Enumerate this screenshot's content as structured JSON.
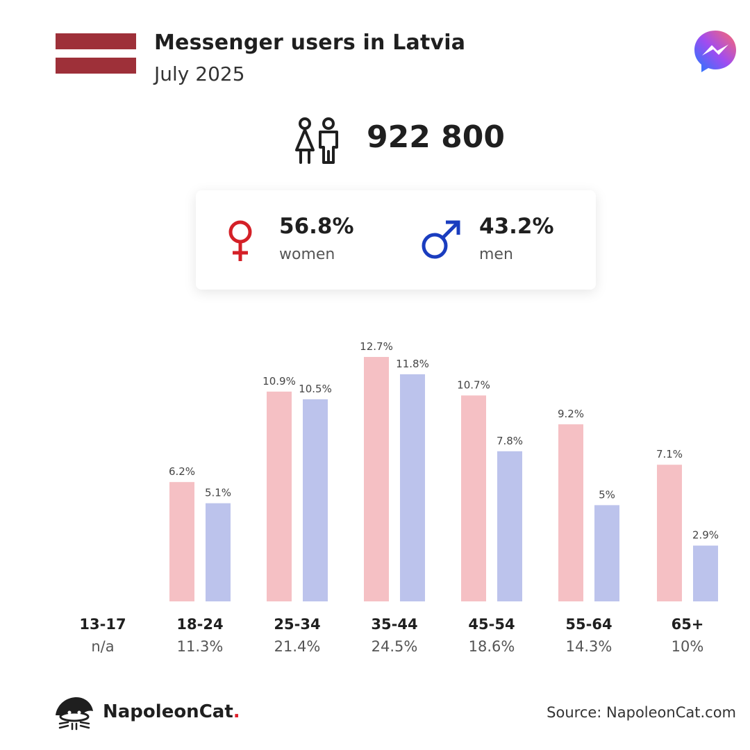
{
  "header": {
    "title": "Messenger users in Latvia",
    "subtitle": "July 2025"
  },
  "total": "922 800",
  "gender": {
    "women_pct": "56.8%",
    "women_label": "women",
    "men_pct": "43.2%",
    "men_label": "men"
  },
  "icons": {
    "flag": "latvia-flag",
    "brand": "messenger-logo-icon",
    "people": "people-icon",
    "female": "female-symbol-icon",
    "male": "male-symbol-icon",
    "footer_logo": "napoleoncat-logo-icon"
  },
  "colors": {
    "flag_red": "#9e3039",
    "female": "#d42027",
    "male": "#1a3dbf",
    "bar_women": "#f5c0c4",
    "bar_men": "#bcc3ec"
  },
  "chart_data": {
    "type": "bar",
    "categories": [
      "13-17",
      "18-24",
      "25-34",
      "35-44",
      "45-54",
      "55-64",
      "65+"
    ],
    "category_totals": [
      "n/a",
      "11.3%",
      "21.4%",
      "24.5%",
      "18.6%",
      "14.3%",
      "10%"
    ],
    "series": [
      {
        "values": [
          null,
          6.2,
          10.9,
          12.7,
          10.7,
          9.2,
          7.1
        ],
        "labels": [
          "",
          "6.2%",
          "10.9%",
          "12.7%",
          "10.7%",
          "9.2%",
          "7.1%"
        ]
      },
      {
        "values": [
          null,
          5.1,
          10.5,
          11.8,
          7.8,
          5,
          2.9
        ],
        "labels": [
          "",
          "5.1%",
          "10.5%",
          "11.8%",
          "7.8%",
          "5%",
          "2.9%"
        ]
      }
    ],
    "ylim": [
      0,
      12.7
    ]
  },
  "footer": {
    "brand_name": "NapoleonCat",
    "brand_dot": ".",
    "source": "Source: NapoleonCat.com"
  }
}
